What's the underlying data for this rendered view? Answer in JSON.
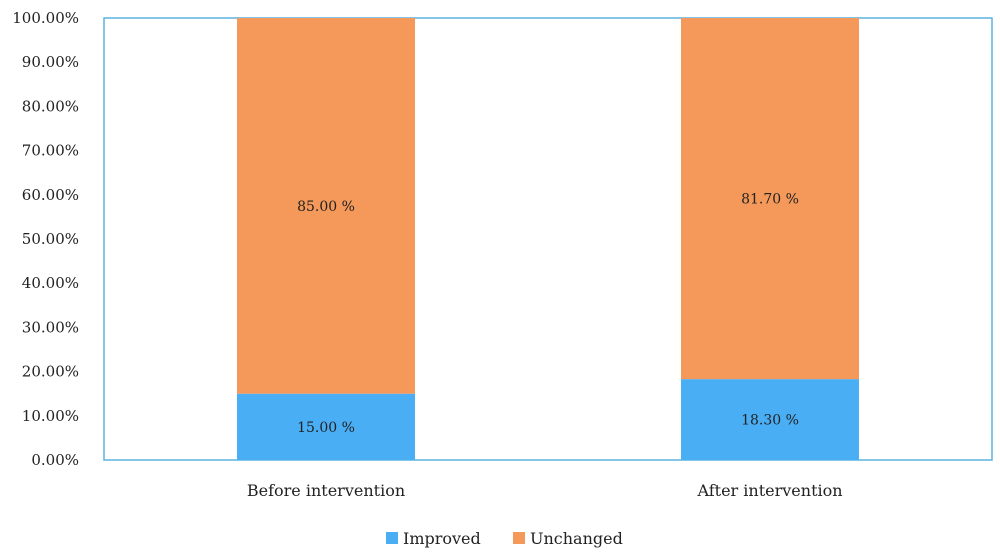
{
  "chart_data": {
    "type": "bar",
    "stacked": true,
    "categories": [
      "Before intervention",
      "After intervention"
    ],
    "series": [
      {
        "name": "Improved",
        "values": [
          15.0,
          18.3
        ],
        "color": "#4aaef5",
        "labels": [
          "15.00 %",
          "18.30 %"
        ]
      },
      {
        "name": "Unchanged",
        "values": [
          85.0,
          81.7
        ],
        "color": "#f5995a",
        "labels": [
          "85.00 %",
          "81.70 %"
        ]
      }
    ],
    "ylim": [
      0,
      100
    ],
    "yticks": [
      "0.00%",
      "10.00%",
      "20.00%",
      "30.00%",
      "40.00%",
      "50.00%",
      "60.00%",
      "70.00%",
      "80.00%",
      "90.00%",
      "100.00%"
    ],
    "grid": false,
    "legend_position": "bottom",
    "plot_border_color": "#5ab4e0"
  }
}
